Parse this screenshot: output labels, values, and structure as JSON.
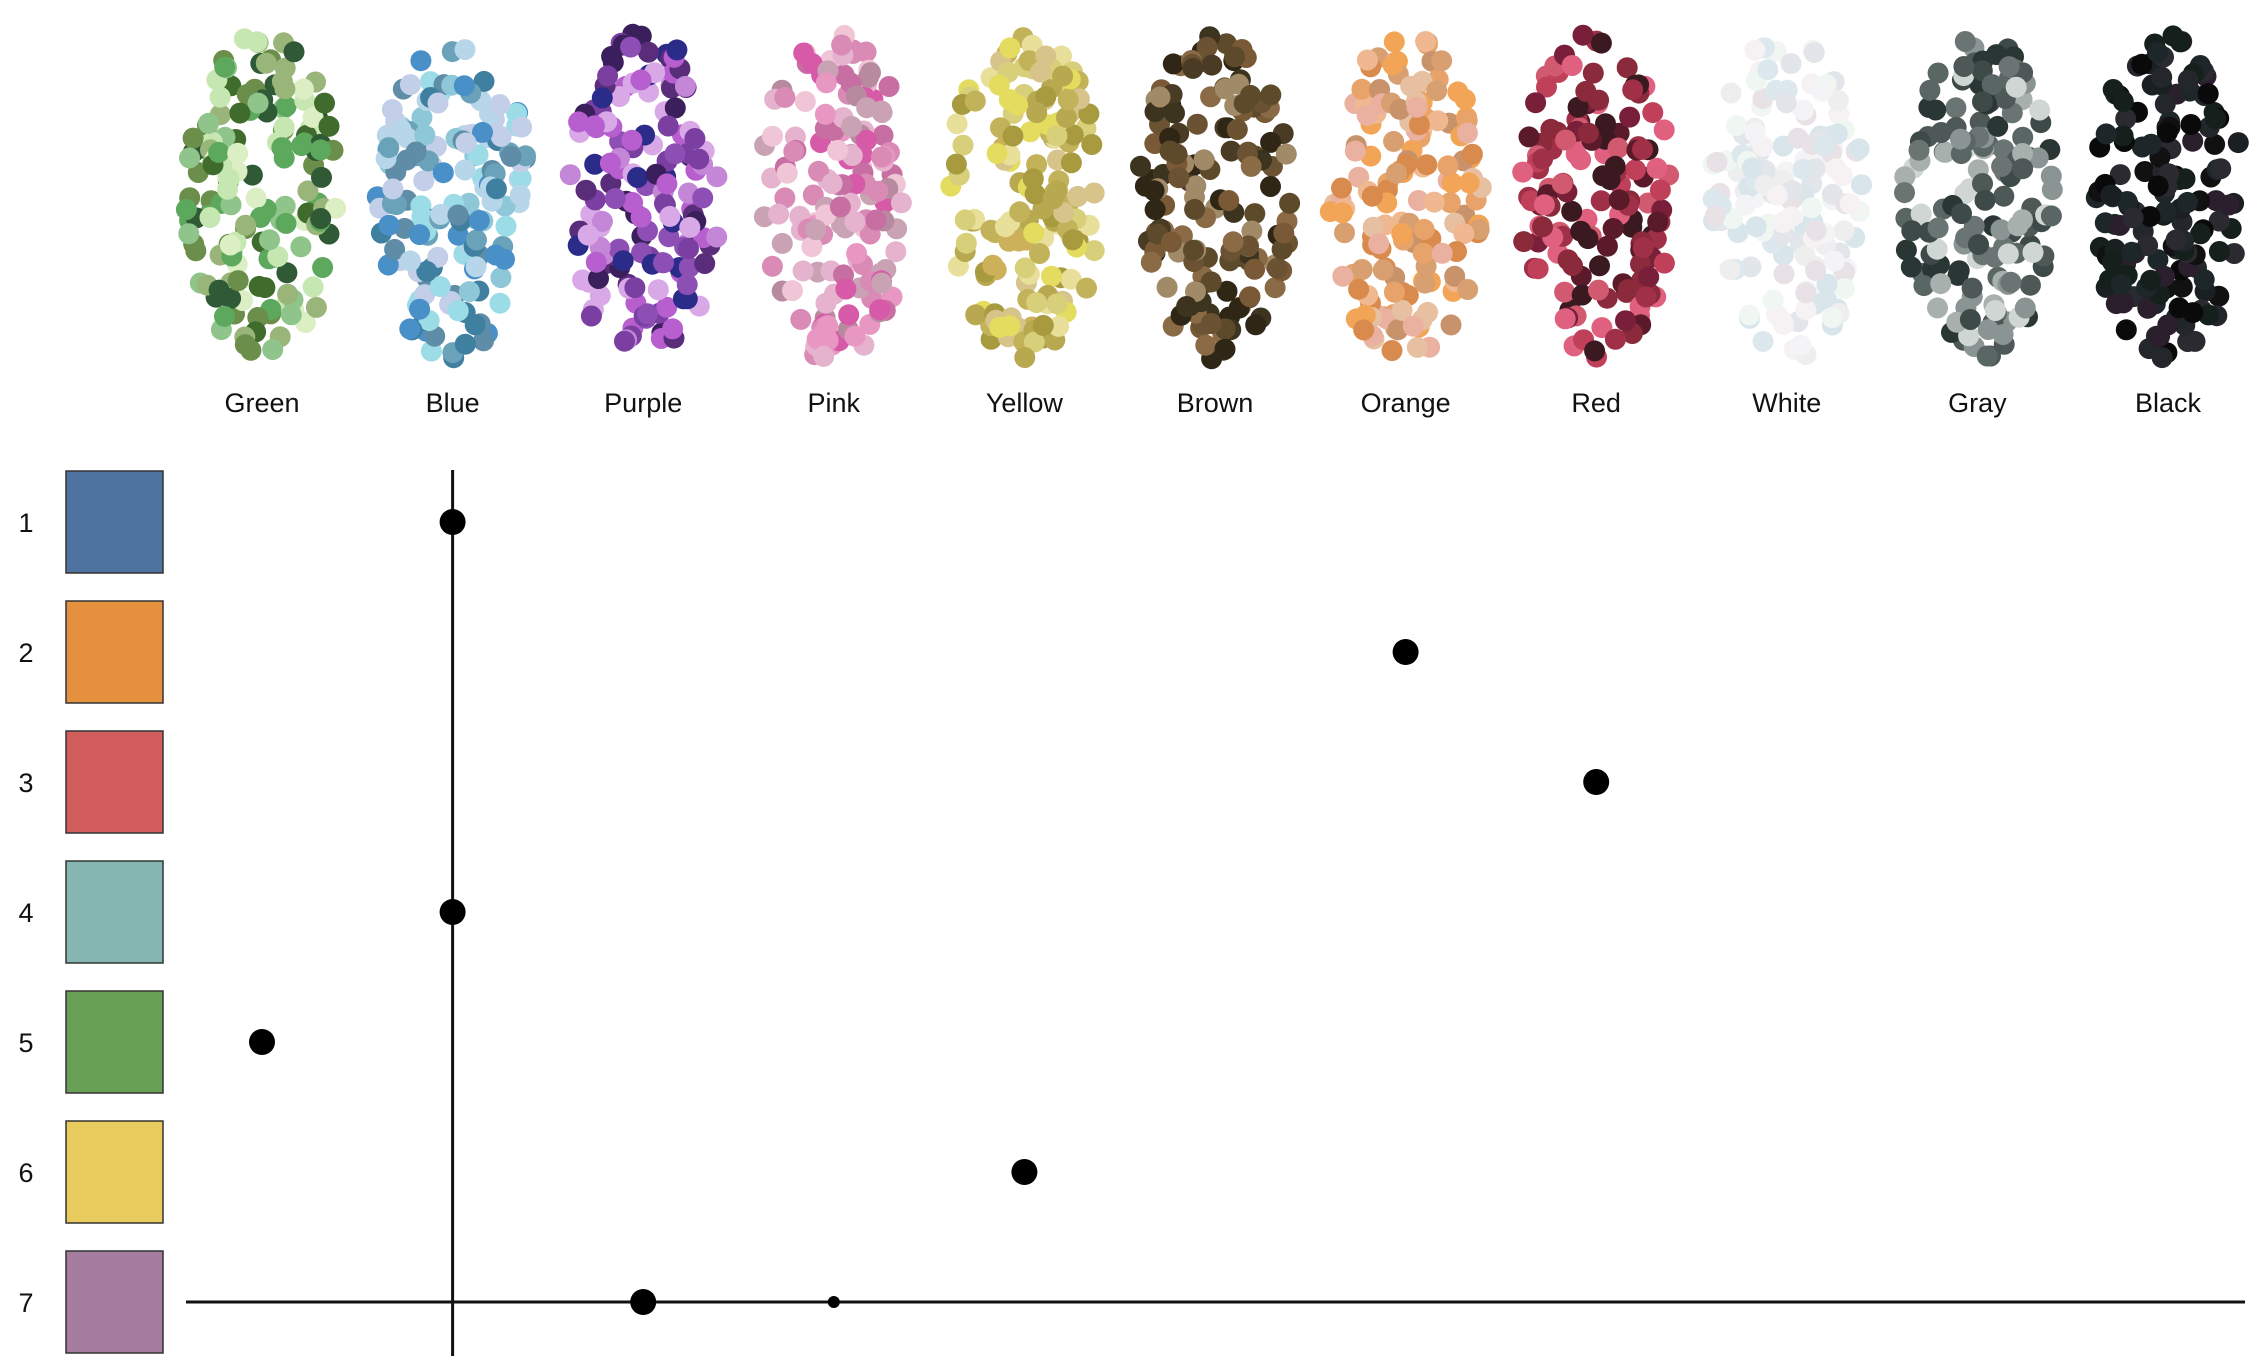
{
  "chart_data": {
    "type": "scatter",
    "title": "",
    "xlabel": "",
    "ylabel": "",
    "categories": [
      "Green",
      "Blue",
      "Purple",
      "Pink",
      "Yellow",
      "Brown",
      "Orange",
      "Red",
      "White",
      "Gray",
      "Black"
    ],
    "rows": [
      "1",
      "2",
      "3",
      "4",
      "5",
      "6",
      "7"
    ],
    "swatch_colors": [
      "#4E73A0",
      "#E4903F",
      "#D15E5C",
      "#86B6B1",
      "#68A155",
      "#E8CB5C",
      "#A67C9F"
    ],
    "category_colors": {
      "Green": [
        "#6b8f4a",
        "#2f5a35",
        "#8fc48a",
        "#c6e7b2",
        "#3f6b2c",
        "#9ab57a",
        "#5ca85c",
        "#dcefc4"
      ],
      "Blue": [
        "#5f8ca6",
        "#8ec7d8",
        "#3f7f9f",
        "#b7d6ea",
        "#6aa2b9",
        "#9bdce6",
        "#4a90c8",
        "#c3cfe8"
      ],
      "Purple": [
        "#5a2d7a",
        "#8e4fb5",
        "#3a1f5c",
        "#c487d8",
        "#7a3fa0",
        "#2b2b8a",
        "#b85fd0",
        "#d9a8e6"
      ],
      "Pink": [
        "#d98bb5",
        "#c76fa3",
        "#e6b3cf",
        "#b88aa0",
        "#f0c6d6",
        "#d65aa8",
        "#c9a2b4",
        "#e896c2"
      ],
      "Yellow": [
        "#c2b35a",
        "#d8cf7a",
        "#a89a3e",
        "#e8e09a",
        "#cdb05a",
        "#b8a850",
        "#e3dc5e",
        "#d6c48a"
      ],
      "Brown": [
        "#4a3b24",
        "#6b5232",
        "#2f2616",
        "#8a6b45",
        "#5c4a2a",
        "#7a5a36",
        "#3d3420",
        "#a08a68"
      ],
      "Orange": [
        "#e8a36a",
        "#d98b4e",
        "#f0b890",
        "#e6c0a0",
        "#d8a070",
        "#f2a556",
        "#c8926a",
        "#eab0a0"
      ],
      "Red": [
        "#8a2a3a",
        "#c0405a",
        "#5a1a2a",
        "#d25a70",
        "#7a1f3a",
        "#e06080",
        "#a03048",
        "#3a1a20"
      ],
      "White": [
        "#eeeeee",
        "#f4f4f6",
        "#e2e6ea",
        "#dde8ee",
        "#f6f2f4",
        "#e8e2e6",
        "#d8e6ec",
        "#f0f6f2"
      ],
      "Gray": [
        "#3e4a48",
        "#6a7472",
        "#2a3634",
        "#8a9492",
        "#4e5856",
        "#a8b0ae",
        "#5a6664",
        "#d0d6d4"
      ],
      "Black": [
        "#111111",
        "#1a1f22",
        "#23262a",
        "#2b1f2e",
        "#15201c",
        "#0a0a0a",
        "#2a2a30",
        "#1d2628"
      ]
    },
    "points": [
      {
        "x": "Green",
        "y": "5",
        "size": "large"
      },
      {
        "x": "Blue",
        "y": "1",
        "size": "large"
      },
      {
        "x": "Blue",
        "y": "4",
        "size": "large"
      },
      {
        "x": "Purple",
        "y": "7",
        "size": "large"
      },
      {
        "x": "Pink",
        "y": "7",
        "size": "small"
      },
      {
        "x": "Yellow",
        "y": "6",
        "size": "large"
      },
      {
        "x": "Orange",
        "y": "2",
        "size": "large"
      },
      {
        "x": "Red",
        "y": "3",
        "size": "large"
      }
    ],
    "reference_lines": {
      "vertical_at": "Blue",
      "horizontal_at": "7"
    },
    "grid": false,
    "legend": "none"
  }
}
